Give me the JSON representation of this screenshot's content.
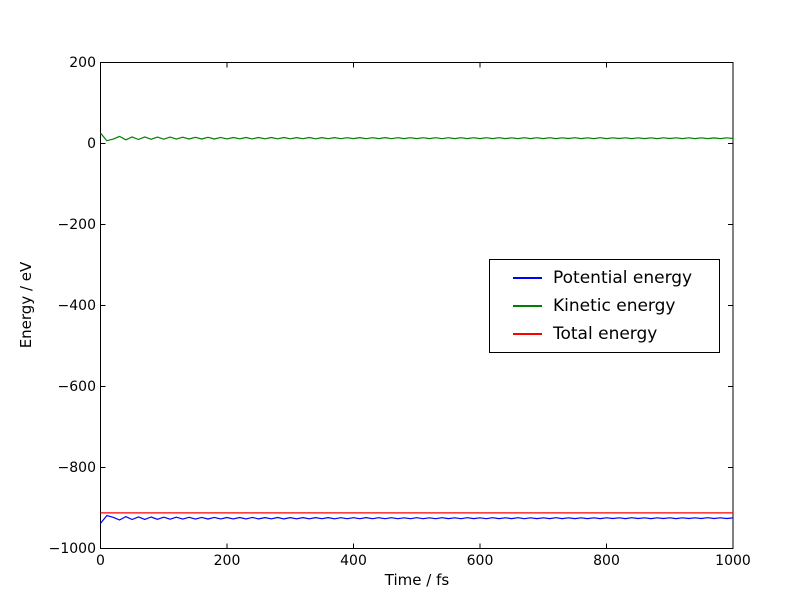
{
  "chart_data": {
    "type": "line",
    "title": "",
    "xlabel": "Time / fs",
    "ylabel": "Energy / eV",
    "xlim": [
      0,
      1000
    ],
    "ylim": [
      -1000,
      200
    ],
    "grid": false,
    "legend": {
      "position": "center right",
      "border_color": "#000000",
      "background": "#ffffff"
    },
    "x_ticks": {
      "values": [
        0,
        200,
        400,
        600,
        800,
        1000
      ],
      "labels": [
        "0",
        "200",
        "400",
        "600",
        "800",
        "1000"
      ]
    },
    "y_ticks": {
      "values": [
        200,
        0,
        -200,
        -400,
        -600,
        -800,
        -1000
      ],
      "labels": [
        "200",
        "0",
        "−200",
        "−400",
        "−600",
        "−800",
        "−1000"
      ]
    },
    "x": [
      0,
      10,
      20,
      30,
      40,
      50,
      60,
      70,
      80,
      90,
      100,
      110,
      120,
      130,
      140,
      150,
      160,
      170,
      180,
      190,
      200,
      210,
      220,
      230,
      240,
      250,
      260,
      270,
      280,
      290,
      300,
      310,
      320,
      330,
      340,
      350,
      360,
      370,
      380,
      390,
      400,
      410,
      420,
      430,
      440,
      450,
      460,
      470,
      480,
      490,
      500,
      510,
      520,
      530,
      540,
      550,
      560,
      570,
      580,
      590,
      600,
      610,
      620,
      630,
      640,
      650,
      660,
      670,
      680,
      690,
      700,
      710,
      720,
      730,
      740,
      750,
      760,
      770,
      780,
      790,
      800,
      810,
      820,
      830,
      840,
      850,
      860,
      870,
      880,
      890,
      900,
      910,
      920,
      930,
      940,
      950,
      960,
      970,
      980,
      990,
      1000
    ],
    "series": [
      {
        "name": "Potential energy",
        "color": "#0000ff",
        "values": [
          -938.0,
          -918.8,
          -922.9,
          -929.6,
          -921.2,
          -928.4,
          -921.9,
          -928.2,
          -922.3,
          -927.9,
          -922.6,
          -927.7,
          -922.8,
          -927.5,
          -923.0,
          -927.3,
          -923.1,
          -927.2,
          -923.2,
          -927.0,
          -923.4,
          -926.9,
          -923.5,
          -926.8,
          -923.3,
          -926.9,
          -923.6,
          -926.7,
          -923.5,
          -926.8,
          -923.7,
          -926.6,
          -923.8,
          -926.7,
          -923.6,
          -926.5,
          -923.8,
          -926.6,
          -923.9,
          -926.4,
          -924.0,
          -926.5,
          -923.8,
          -926.4,
          -924.0,
          -926.5,
          -923.9,
          -926.3,
          -924.1,
          -926.4,
          -924.0,
          -926.3,
          -924.1,
          -926.4,
          -923.9,
          -926.2,
          -924.2,
          -926.3,
          -924.0,
          -926.2,
          -924.1,
          -926.3,
          -924.0,
          -926.2,
          -924.2,
          -926.1,
          -924.0,
          -926.3,
          -924.1,
          -926.2,
          -924.2,
          -926.2,
          -924.0,
          -926.1,
          -924.3,
          -926.2,
          -924.1,
          -926.1,
          -924.2,
          -926.2,
          -924.1,
          -926.0,
          -924.3,
          -926.1,
          -924.0,
          -926.0,
          -924.2,
          -926.1,
          -924.1,
          -926.0,
          -924.3,
          -926.1,
          -924.1,
          -926.0,
          -924.2,
          -926.0,
          -924.0,
          -925.9,
          -924.2,
          -926.0,
          -924.4
        ]
      },
      {
        "name": "Kinetic energy",
        "color": "#008000",
        "values": [
          26.0,
          6.8,
          10.9,
          17.6,
          9.2,
          16.4,
          9.9,
          16.2,
          10.3,
          15.9,
          10.6,
          15.7,
          10.8,
          15.5,
          11.0,
          15.3,
          11.1,
          15.2,
          11.2,
          15.0,
          11.4,
          14.9,
          11.5,
          14.8,
          11.3,
          14.9,
          11.6,
          14.7,
          11.5,
          14.8,
          11.7,
          14.6,
          11.8,
          14.7,
          11.6,
          14.5,
          11.8,
          14.6,
          11.9,
          14.4,
          12.0,
          14.5,
          11.8,
          14.4,
          12.0,
          14.5,
          11.9,
          14.3,
          12.1,
          14.4,
          12.0,
          14.3,
          12.1,
          14.4,
          11.9,
          14.2,
          12.2,
          14.3,
          12.0,
          14.2,
          12.1,
          14.3,
          12.0,
          14.2,
          12.2,
          14.1,
          12.0,
          14.3,
          12.1,
          14.2,
          12.2,
          14.2,
          12.0,
          14.1,
          12.3,
          14.2,
          12.1,
          14.1,
          12.2,
          14.2,
          12.1,
          14.0,
          12.3,
          14.1,
          12.0,
          14.0,
          12.2,
          14.1,
          12.1,
          14.0,
          12.3,
          14.1,
          12.1,
          14.0,
          12.2,
          14.0,
          12.0,
          13.9,
          12.2,
          14.0,
          12.4
        ]
      },
      {
        "name": "Total energy",
        "color": "#ff0000",
        "constant": -912.0
      }
    ]
  }
}
